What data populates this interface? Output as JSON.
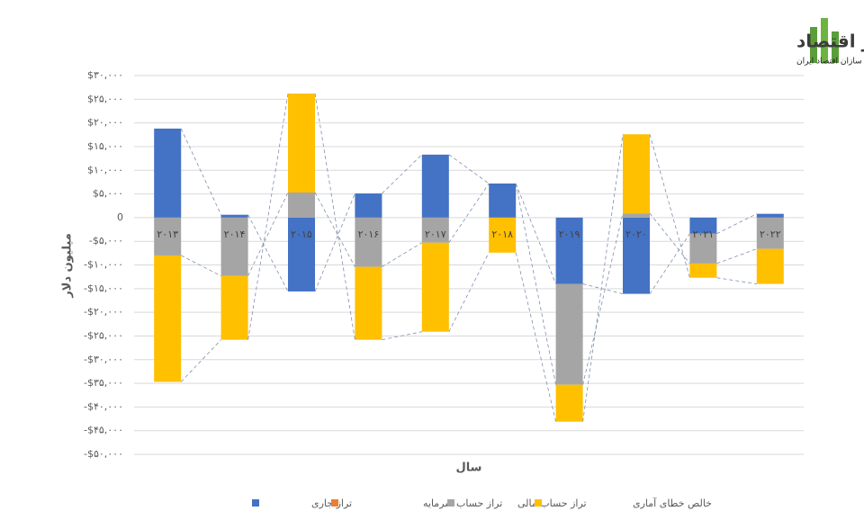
{
  "brand": {
    "name": "مسیر اقتصاد",
    "tagline": "رسانه تصمیم سازان اقتصاد ایران"
  },
  "chart_data": {
    "type": "stacked-bar",
    "y_label": "میلیون دلار",
    "x_label": "سال",
    "categories": [
      "۲۰۱۳",
      "۲۰۱۴",
      "۲۰۱۵",
      "۲۰۱۶",
      "۲۰۱۷",
      "۲۰۱۸",
      "۲۰۱۹",
      "۲۰۲۰",
      "۲۰۲۱",
      "۲۰۲۲"
    ],
    "series": [
      {
        "name": "تراز جاری",
        "color": "#4472c4",
        "values": [
          18800,
          600,
          -15600,
          5100,
          13300,
          7200,
          -14000,
          -16100,
          -3400,
          800
        ]
      },
      {
        "name": "تراز حساب سرمایه",
        "color": "#ed7d31",
        "values": [
          0,
          0,
          0,
          0,
          0,
          0,
          0,
          0,
          0,
          0
        ]
      },
      {
        "name": "تراز حساب مالی",
        "color": "#a5a5a5",
        "values": [
          -8000,
          -12300,
          5300,
          -10400,
          -5300,
          0,
          -21300,
          900,
          -6300,
          -6600
        ]
      },
      {
        "name": "خالص خطای آماری",
        "color": "#ffc000",
        "values": [
          -26700,
          -13500,
          20900,
          -15400,
          -18800,
          -7400,
          -7800,
          16700,
          -3000,
          -7400
        ]
      }
    ],
    "ylim": [
      -50000,
      30000
    ],
    "yticks": [
      {
        "value": -50000,
        "label": "-$۵۰,۰۰۰"
      },
      {
        "value": -45000,
        "label": "-$۴۵,۰۰۰"
      },
      {
        "value": -40000,
        "label": "-$۴۰,۰۰۰"
      },
      {
        "value": -35000,
        "label": "-$۳۵,۰۰۰"
      },
      {
        "value": -30000,
        "label": "-$۳۰,۰۰۰"
      },
      {
        "value": -25000,
        "label": "-$۲۵,۰۰۰"
      },
      {
        "value": -20000,
        "label": "-$۲۰,۰۰۰"
      },
      {
        "value": -15000,
        "label": "-$۱۵,۰۰۰"
      },
      {
        "value": -10000,
        "label": "-$۱۰,۰۰۰"
      },
      {
        "value": -5000,
        "label": "-$۵,۰۰۰"
      },
      0,
      {
        "value": 5000,
        "label": "$۵,۰۰۰"
      },
      {
        "value": 10000,
        "label": "$۱۰,۰۰۰"
      },
      {
        "value": 15000,
        "label": "$۱۵,۰۰۰"
      },
      {
        "value": 20000,
        "label": "$۲۰,۰۰۰"
      },
      {
        "value": 25000,
        "label": "$۲۵,۰۰۰"
      },
      {
        "value": 30000,
        "label": "$۳۰,۰۰۰"
      }
    ],
    "grid": true,
    "legend": "bottom"
  }
}
